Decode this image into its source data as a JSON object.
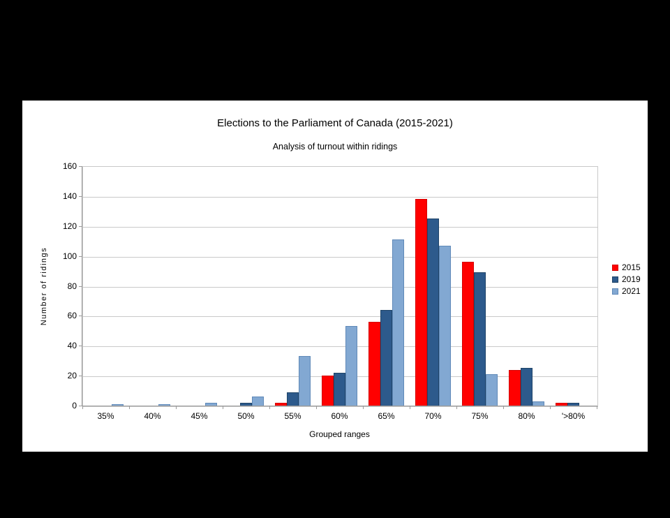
{
  "chart_data": {
    "type": "bar",
    "title": "Elections to the Parliament of Canada (2015-2021)",
    "subtitle": "Analysis of turnout within ridings",
    "xlabel": "Grouped ranges",
    "ylabel": "Number of ridings",
    "categories": [
      "35%",
      "40%",
      "45%",
      "50%",
      "55%",
      "60%",
      "65%",
      "70%",
      "75%",
      "80%",
      "'>80%"
    ],
    "series": [
      {
        "name": "2015",
        "color": "#ff0000",
        "border_color": "#d40000",
        "values": [
          0,
          0,
          0,
          0,
          2,
          20,
          56,
          138,
          96,
          24,
          2
        ]
      },
      {
        "name": "2019",
        "color": "#2d5a8c",
        "border_color": "#1f4468",
        "values": [
          0,
          0,
          0,
          2,
          9,
          22,
          64,
          125,
          89,
          25,
          2
        ]
      },
      {
        "name": "2021",
        "color": "#82a8d2",
        "border_color": "#5f89b8",
        "values": [
          1,
          1,
          2,
          6,
          33,
          53,
          111,
          107,
          21,
          3,
          0
        ]
      }
    ],
    "ylim": [
      0,
      160
    ],
    "ytick_step": 20,
    "yticks": [
      0,
      20,
      40,
      60,
      80,
      100,
      120,
      140,
      160
    ],
    "grid": true,
    "legend_position": "right",
    "colors": {
      "page_background": "#000000",
      "panel_background": "#ffffff",
      "gridline": "#c9c9c9",
      "axis_line": "#9a9a9a",
      "text": "#000000"
    }
  }
}
